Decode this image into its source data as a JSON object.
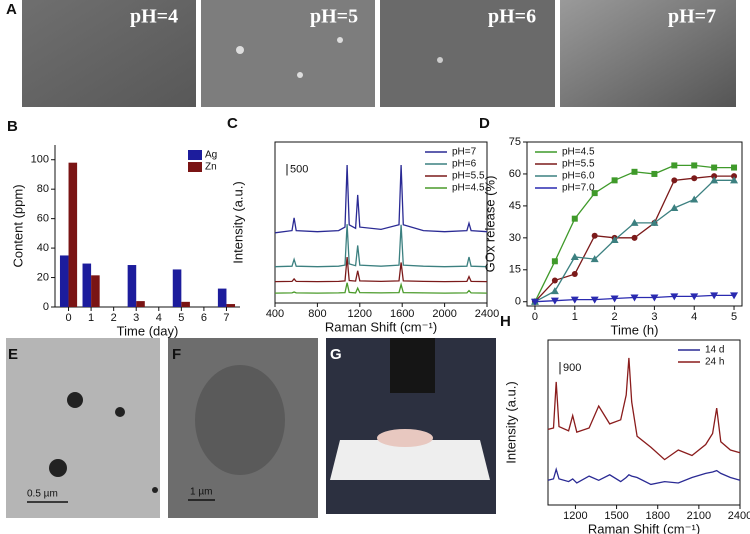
{
  "image_panels": [
    {
      "letter": "A",
      "labels": [
        "pH=4",
        "pH=5",
        "pH=6",
        "pH=7"
      ]
    },
    {
      "letter": "E",
      "scale": "0.5 µm"
    },
    {
      "letter": "F",
      "scale": "1 µm"
    },
    {
      "letter": "G"
    }
  ],
  "chart_data": [
    {
      "type": "bar",
      "panel": "B",
      "frame": "axes",
      "x_label": "Time (day)",
      "y_label": "Content (ppm)",
      "x": [
        0,
        1,
        3,
        5,
        7
      ],
      "xlim": [
        -0.6,
        7.6
      ],
      "xticks": [
        0,
        1,
        2,
        3,
        4,
        5,
        6,
        7
      ],
      "ylim": [
        0,
        110
      ],
      "yticks": [
        0,
        20,
        40,
        60,
        80,
        100
      ],
      "legend": "upper right",
      "series": [
        {
          "name": "Ag",
          "color": "#1c1c9c",
          "values": [
            35,
            29.5,
            28.5,
            25.5,
            12.5
          ]
        },
        {
          "name": "Zn",
          "color": "#7a1414",
          "values": [
            98,
            21.5,
            4,
            3.5,
            2
          ]
        }
      ]
    },
    {
      "type": "line",
      "panel": "C",
      "frame": "box",
      "x_label": "Raman Shift (cm⁻¹)",
      "y_label": "Intensity (a.u.)",
      "x": [
        400,
        560,
        580,
        600,
        800,
        1000,
        1060,
        1080,
        1100,
        1160,
        1180,
        1200,
        1400,
        1570,
        1590,
        1610,
        1800,
        2000,
        2210,
        2230,
        2250,
        2400
      ],
      "xlim": [
        400,
        2400
      ],
      "xticks": [
        400,
        800,
        1200,
        1600,
        2000,
        2400
      ],
      "ylim": [
        0,
        7000
      ],
      "scale_bar": 500,
      "legend": "upper right",
      "series": [
        {
          "name": "pH=7",
          "color": "#2a2a94",
          "values": [
            3050,
            3150,
            3700,
            3150,
            3100,
            3150,
            3300,
            6000,
            3400,
            3250,
            4700,
            3300,
            3200,
            3400,
            6000,
            3400,
            3150,
            3100,
            3150,
            3470,
            3150,
            3100
          ]
        },
        {
          "name": "pH=6",
          "color": "#3c8080",
          "values": [
            1580,
            1600,
            1900,
            1600,
            1580,
            1600,
            1650,
            3430,
            1700,
            1620,
            2500,
            1650,
            1600,
            1650,
            3400,
            1650,
            1600,
            1580,
            1600,
            2000,
            1600,
            1580
          ]
        },
        {
          "name": "pH=5.5",
          "color": "#7b1a1a",
          "values": [
            930,
            940,
            1050,
            940,
            930,
            940,
            960,
            2000,
            980,
            950,
            1400,
            960,
            940,
            960,
            1760,
            960,
            940,
            930,
            940,
            1150,
            940,
            930
          ]
        },
        {
          "name": "pH=4.5",
          "color": "#4a9a2a",
          "values": [
            430,
            440,
            480,
            440,
            430,
            440,
            450,
            880,
            460,
            440,
            650,
            450,
            440,
            450,
            800,
            450,
            440,
            430,
            440,
            540,
            440,
            430
          ]
        }
      ]
    },
    {
      "type": "line",
      "panel": "D",
      "frame": "box",
      "x_label": "Time (h)",
      "y_label": "GOx release (%)",
      "x": [
        0,
        0.5,
        1,
        1.5,
        2,
        2.5,
        3,
        3.5,
        4,
        4.5,
        5
      ],
      "xlim": [
        -0.2,
        5.2
      ],
      "xticks": [
        0,
        1,
        2,
        3,
        4,
        5
      ],
      "ylim": [
        -2,
        75
      ],
      "yticks": [
        0,
        15,
        30,
        45,
        60,
        75
      ],
      "legend": "upper left",
      "series": [
        {
          "name": "pH=4.5",
          "color": "#3f9a2a",
          "marker": "square",
          "values": [
            0,
            19,
            39,
            51,
            57,
            61,
            60,
            64,
            64,
            63,
            63
          ]
        },
        {
          "name": "pH=5.5",
          "color": "#7b1a1a",
          "marker": "circle",
          "values": [
            0,
            10,
            13,
            31,
            30,
            30,
            37,
            57,
            58,
            59,
            59
          ]
        },
        {
          "name": "pH=6.0",
          "color": "#3c8080",
          "marker": "triangle",
          "values": [
            0,
            5,
            21,
            20,
            29,
            37,
            37,
            44,
            48,
            57,
            57
          ]
        },
        {
          "name": "pH=7.0",
          "color": "#2a2ab0",
          "marker": "triangle-down",
          "values": [
            0,
            0.5,
            1,
            1,
            1.5,
            2,
            2,
            2.5,
            2.5,
            3,
            3
          ]
        }
      ]
    },
    {
      "type": "line",
      "panel": "H",
      "frame": "box",
      "x_label": "Raman Shift (cm⁻¹)",
      "y_label": "Intensity (a.u.)",
      "x": [
        1000,
        1040,
        1060,
        1080,
        1150,
        1180,
        1210,
        1300,
        1370,
        1450,
        1530,
        1570,
        1590,
        1610,
        1650,
        1750,
        1850,
        1950,
        2050,
        2150,
        2200,
        2230,
        2260,
        2330,
        2400
      ],
      "xlim": [
        1000,
        2400
      ],
      "xticks": [
        1200,
        1500,
        1800,
        2100,
        2400
      ],
      "ylim": [
        0,
        12000
      ],
      "scale_bar": 900,
      "legend": "upper right",
      "series": [
        {
          "name": "14 d",
          "color": "#2a2a94",
          "values": [
            1800,
            1900,
            2600,
            1900,
            1700,
            1900,
            1600,
            2100,
            1800,
            2200,
            1700,
            2000,
            2200,
            2100,
            2000,
            1500,
            1700,
            1600,
            2000,
            2300,
            2400,
            2500,
            2300,
            2000,
            1800
          ]
        },
        {
          "name": "24 h",
          "color": "#8a1c1c",
          "values": [
            5500,
            5600,
            8950,
            5700,
            5400,
            6500,
            5300,
            5600,
            7200,
            5900,
            6200,
            8000,
            10700,
            7500,
            5000,
            4200,
            3300,
            4000,
            3600,
            4400,
            5200,
            7050,
            4600,
            4000,
            3800
          ]
        }
      ]
    }
  ]
}
